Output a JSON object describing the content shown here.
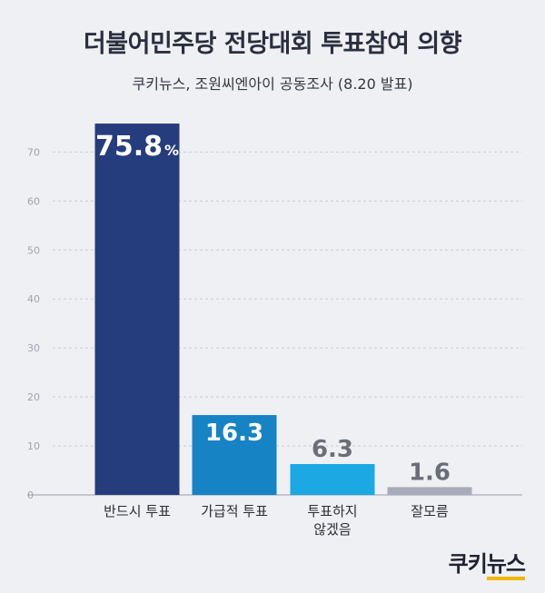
{
  "title": "더불어민주당 전당대회 투표참여 의향",
  "subtitle": "쿠키뉴스, 조원씨엔아이 공동조사 (8.20 발표)",
  "logo": {
    "part1": "쿠키",
    "part2": "뉴스"
  },
  "chart_data": {
    "type": "bar",
    "categories": [
      [
        "반드시 투표"
      ],
      [
        "가급적 투표"
      ],
      [
        "투표하지",
        "않겠음"
      ],
      [
        "잘모름"
      ]
    ],
    "values": [
      75.8,
      16.3,
      6.3,
      1.6
    ],
    "value_labels": [
      "75.8",
      "16.3",
      "6.3",
      "1.6"
    ],
    "value_unit": "%",
    "yticks": [
      "0",
      "10",
      "20",
      "30",
      "40",
      "50",
      "60",
      "70"
    ],
    "ylim": [
      0,
      76
    ],
    "grid": true,
    "colors": [
      "#253d7d",
      "#1683c5",
      "#1ca8e3",
      "#a8acb8"
    ],
    "label_colors": [
      "#ffffff",
      "#ffffff",
      "#6b6e76",
      "#6b6e76"
    ]
  }
}
